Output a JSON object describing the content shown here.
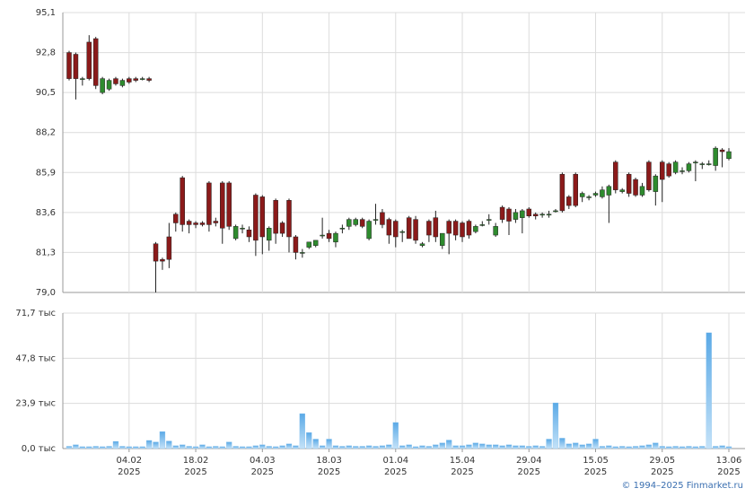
{
  "chart_data": [
    {
      "type": "candlestick",
      "up_color": "#2e8b2e",
      "down_color": "#8b1a1a",
      "grid": true,
      "ylim": [
        79.0,
        95.1
      ],
      "yticks": [
        {
          "value": 79.0,
          "label": "79,0"
        },
        {
          "value": 81.3,
          "label": "81,3"
        },
        {
          "value": 83.6,
          "label": "83,6"
        },
        {
          "value": 85.9,
          "label": "85,9"
        },
        {
          "value": 88.2,
          "label": "88,2"
        },
        {
          "value": 90.5,
          "label": "90,5"
        },
        {
          "value": 92.8,
          "label": "92,8"
        },
        {
          "value": 95.1,
          "label": "95,1"
        }
      ],
      "open": [
        92.8,
        92.7,
        91.3,
        93.4,
        93.6,
        90.5,
        90.7,
        91.3,
        90.9,
        91.3,
        91.3,
        91.3,
        91.3,
        81.8,
        80.9,
        82.2,
        83.5,
        85.6,
        83.1,
        83.0,
        83.0,
        85.3,
        83.1,
        85.3,
        85.3,
        82.1,
        82.7,
        82.6,
        84.6,
        84.5,
        82.0,
        84.3,
        83.0,
        84.3,
        82.2,
        81.3,
        81.6,
        81.7,
        82.3,
        82.4,
        81.9,
        82.7,
        82.8,
        82.9,
        83.2,
        82.1,
        83.2,
        83.6,
        83.2,
        83.1,
        82.5,
        83.3,
        83.2,
        81.7,
        83.1,
        83.3,
        81.7,
        83.1,
        83.1,
        83.0,
        83.1,
        82.5,
        82.9,
        83.2,
        82.3,
        83.9,
        83.8,
        83.2,
        83.3,
        83.8,
        83.5,
        83.5,
        83.5,
        83.7,
        85.8,
        84.5,
        85.8,
        84.5,
        84.5,
        84.6,
        84.5,
        84.6,
        86.5,
        84.8,
        85.8,
        85.5,
        84.6,
        86.5,
        84.8,
        86.5,
        86.4,
        85.9,
        86.0,
        86.0,
        86.5,
        86.4,
        86.4,
        86.3,
        87.2,
        86.7
      ],
      "high": [
        92.9,
        92.8,
        91.4,
        93.8,
        93.7,
        91.4,
        91.3,
        91.4,
        91.3,
        91.4,
        91.4,
        91.4,
        91.4,
        81.9,
        81.0,
        83.0,
        83.6,
        85.7,
        83.2,
        83.1,
        83.1,
        85.4,
        83.3,
        85.4,
        85.4,
        82.9,
        82.9,
        82.8,
        84.7,
        84.6,
        82.8,
        84.4,
        83.1,
        84.4,
        82.3,
        81.5,
        81.9,
        82.0,
        83.3,
        82.6,
        82.5,
        82.9,
        83.3,
        83.3,
        83.3,
        83.2,
        84.1,
        83.8,
        83.3,
        83.2,
        82.6,
        83.4,
        83.4,
        81.9,
        83.2,
        83.7,
        82.4,
        83.2,
        83.2,
        83.1,
        83.2,
        82.9,
        83.1,
        83.5,
        83.0,
        84.0,
        83.9,
        83.8,
        83.8,
        83.9,
        83.6,
        83.6,
        83.7,
        83.8,
        85.9,
        84.6,
        85.9,
        84.8,
        84.6,
        84.8,
        85.1,
        85.2,
        86.6,
        85.0,
        85.9,
        85.6,
        85.3,
        86.6,
        85.8,
        86.6,
        86.5,
        86.6,
        86.2,
        86.5,
        86.6,
        86.5,
        86.6,
        87.4,
        87.3,
        87.3
      ],
      "low": [
        91.2,
        90.1,
        90.9,
        91.2,
        90.7,
        90.4,
        90.6,
        90.9,
        90.8,
        91.0,
        91.1,
        91.2,
        91.1,
        79.0,
        80.3,
        80.4,
        82.5,
        82.5,
        82.4,
        82.7,
        82.8,
        82.5,
        82.8,
        81.8,
        82.6,
        82.0,
        82.4,
        81.9,
        81.1,
        81.2,
        81.4,
        81.8,
        82.2,
        81.3,
        80.9,
        81.0,
        81.5,
        81.6,
        82.1,
        81.9,
        81.6,
        82.4,
        82.6,
        82.8,
        82.7,
        82.0,
        82.9,
        82.7,
        81.8,
        81.6,
        81.9,
        82.1,
        81.8,
        81.6,
        81.9,
        81.9,
        81.5,
        81.2,
        82.0,
        81.9,
        82.1,
        82.4,
        82.8,
        82.9,
        82.2,
        83.0,
        82.3,
        83.0,
        82.4,
        83.3,
        83.2,
        83.3,
        83.3,
        83.6,
        83.6,
        83.8,
        83.9,
        84.2,
        84.3,
        84.5,
        84.4,
        83.0,
        84.7,
        84.7,
        84.5,
        84.5,
        84.5,
        84.8,
        84.0,
        84.2,
        85.6,
        85.8,
        85.8,
        85.9,
        85.4,
        86.1,
        86.3,
        86.0,
        86.2,
        86.6
      ],
      "close": [
        91.3,
        91.3,
        91.3,
        91.3,
        90.9,
        91.3,
        91.2,
        91.0,
        91.2,
        91.1,
        91.2,
        91.3,
        91.2,
        80.8,
        80.8,
        80.9,
        83.0,
        82.9,
        82.9,
        82.9,
        82.9,
        82.9,
        83.0,
        82.7,
        82.8,
        82.8,
        82.7,
        82.2,
        82.0,
        82.2,
        82.7,
        82.4,
        82.4,
        82.2,
        81.3,
        81.3,
        81.9,
        82.0,
        82.3,
        82.1,
        82.4,
        82.7,
        83.2,
        83.2,
        82.8,
        83.1,
        83.2,
        82.9,
        82.3,
        82.2,
        82.5,
        82.1,
        82.0,
        81.8,
        82.3,
        82.2,
        82.4,
        82.4,
        82.3,
        82.2,
        82.3,
        82.8,
        82.9,
        83.2,
        82.8,
        83.2,
        83.1,
        83.6,
        83.7,
        83.4,
        83.4,
        83.5,
        83.5,
        83.7,
        83.7,
        84.0,
        84.0,
        84.7,
        84.5,
        84.7,
        84.9,
        85.1,
        84.9,
        84.9,
        84.7,
        84.6,
        85.1,
        84.9,
        85.7,
        85.5,
        85.7,
        86.5,
        86.0,
        86.4,
        86.5,
        86.4,
        86.4,
        87.3,
        87.1,
        87.1
      ]
    },
    {
      "type": "bar",
      "color": "#8cc4ef",
      "grid": true,
      "ylim": [
        0,
        71.7
      ],
      "yticks": [
        {
          "value": 0,
          "label": "0,0 тыс"
        },
        {
          "value": 23.9,
          "label": "23,9 тыс"
        },
        {
          "value": 47.8,
          "label": "47,8 тыс"
        },
        {
          "value": 71.7,
          "label": "71,7 тыс"
        }
      ],
      "categories": [
        null,
        null,
        null,
        null,
        null,
        null,
        null,
        null,
        null,
        "04.02",
        null,
        null,
        null,
        null,
        null,
        null,
        null,
        null,
        null,
        "18.02",
        null,
        null,
        null,
        null,
        null,
        null,
        null,
        null,
        null,
        "04.03",
        null,
        null,
        null,
        null,
        null,
        null,
        null,
        null,
        null,
        "18.03",
        null,
        null,
        null,
        null,
        null,
        null,
        null,
        null,
        null,
        "01.04",
        null,
        null,
        null,
        null,
        null,
        null,
        null,
        null,
        null,
        "15.04",
        null,
        null,
        null,
        null,
        null,
        null,
        null,
        null,
        null,
        "29.04",
        null,
        null,
        null,
        null,
        null,
        null,
        null,
        null,
        null,
        "15.05",
        null,
        null,
        null,
        null,
        null,
        null,
        null,
        null,
        null,
        "29.05",
        null,
        null,
        null,
        null,
        null,
        null,
        null,
        null,
        null,
        "13.06"
      ],
      "x_sublabel": "2025",
      "values": [
        1.2,
        2.0,
        1.0,
        1.0,
        1.2,
        1.0,
        1.2,
        3.8,
        1.2,
        1.0,
        1.0,
        1.0,
        4.3,
        3.5,
        9.0,
        4.0,
        1.5,
        2.0,
        1.2,
        1.0,
        2.0,
        1.0,
        1.2,
        1.0,
        3.5,
        1.2,
        1.0,
        1.0,
        1.5,
        2.0,
        1.2,
        1.0,
        1.5,
        2.5,
        1.5,
        18.5,
        8.5,
        5.0,
        1.5,
        5.0,
        1.5,
        1.2,
        1.5,
        1.2,
        1.2,
        1.5,
        1.2,
        1.5,
        2.0,
        13.8,
        1.5,
        2.0,
        1.0,
        1.5,
        1.2,
        2.0,
        3.0,
        4.5,
        1.5,
        1.5,
        2.0,
        3.0,
        2.5,
        2.0,
        2.0,
        1.5,
        2.0,
        1.5,
        1.5,
        1.2,
        1.5,
        1.2,
        5.0,
        24.2,
        5.5,
        2.5,
        3.0,
        2.0,
        2.5,
        5.0,
        1.2,
        1.5,
        1.0,
        1.2,
        1.0,
        1.2,
        1.5,
        2.0,
        3.0,
        1.2,
        1.0,
        1.2,
        1.0,
        1.2,
        1.0,
        1.2,
        61.3,
        1.2,
        1.5,
        1.0
      ]
    }
  ],
  "footer": "© 1994–2025 Finmarket.ru"
}
